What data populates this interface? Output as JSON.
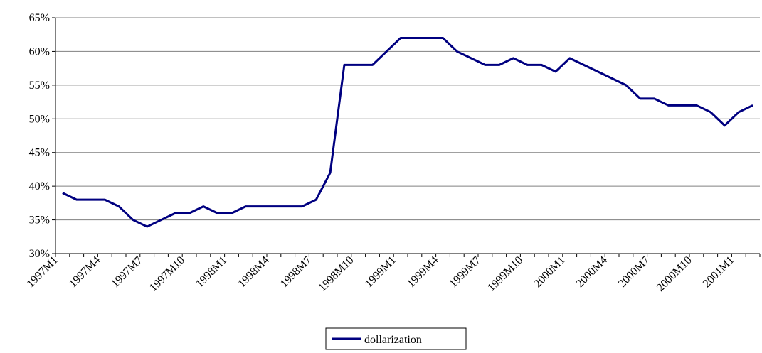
{
  "chart_data": {
    "type": "line",
    "categories": [
      "1997M1",
      null,
      null,
      "1997M4",
      null,
      null,
      "1997M7",
      null,
      null,
      "1997M10",
      null,
      null,
      "1998M1",
      null,
      null,
      "1998M4",
      null,
      null,
      "1998M7",
      null,
      null,
      "1998M10",
      null,
      null,
      "1999M1",
      null,
      null,
      "1999M4",
      null,
      null,
      "1999M7",
      null,
      null,
      "1999M10",
      null,
      null,
      "2000M1",
      null,
      null,
      "2000M4",
      null,
      null,
      "2000M7",
      null,
      null,
      "2000M10",
      null,
      null,
      "2001M1",
      null
    ],
    "series": [
      {
        "name": "dollarization",
        "color": "#000080",
        "values": [
          39,
          38,
          38,
          38,
          37,
          35,
          34,
          35,
          36,
          36,
          37,
          36,
          36,
          37,
          37,
          37,
          37,
          37,
          38,
          42,
          58,
          58,
          58,
          60,
          62,
          62,
          62,
          62,
          60,
          59,
          58,
          58,
          59,
          58,
          58,
          57,
          59,
          58,
          57,
          56,
          55,
          53,
          53,
          52,
          52,
          52,
          51,
          49,
          51,
          52
        ]
      }
    ],
    "ylim": [
      30,
      65
    ],
    "yticks": [
      {
        "value": 30,
        "label": "30%"
      },
      {
        "value": 35,
        "label": "35%"
      },
      {
        "value": 40,
        "label": "40%"
      },
      {
        "value": 45,
        "label": "45%"
      },
      {
        "value": 50,
        "label": "50%"
      },
      {
        "value": 55,
        "label": "55%"
      },
      {
        "value": 60,
        "label": "60%"
      },
      {
        "value": 65,
        "label": "65%"
      }
    ],
    "grid": true,
    "legend": "bottom"
  }
}
